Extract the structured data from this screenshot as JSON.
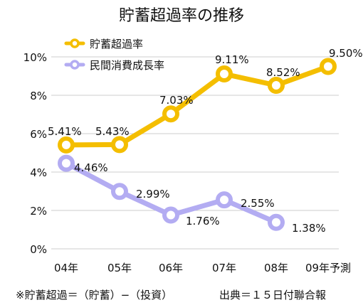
{
  "title": "貯蓄超過率の推移",
  "footnote": "※貯蓄超過＝（貯蓄）−（投資）",
  "source": "出典＝１５日付聯合報",
  "colors": {
    "savings": "#f4be00",
    "consumption": "#b3acf2",
    "grid": "#cccccc"
  },
  "chart_data": {
    "type": "line",
    "title": "貯蓄超過率の推移",
    "categories": [
      "04年",
      "05年",
      "06年",
      "07年",
      "08年",
      "09年予測"
    ],
    "ylim": [
      0,
      10
    ],
    "yticks": [
      "0%",
      "2%",
      "4%",
      "6%",
      "8%",
      "10%"
    ],
    "grid": true,
    "legend_position": "top-left",
    "series": [
      {
        "name": "貯蓄超過率",
        "values": [
          5.41,
          5.43,
          7.03,
          9.11,
          8.52,
          9.5
        ],
        "labels": [
          "5.41%",
          "5.43%",
          "7.03%",
          "9.11%",
          "8.52%",
          "9.50%"
        ]
      },
      {
        "name": "民間消費成長率",
        "values": [
          4.46,
          2.99,
          1.76,
          2.55,
          1.38,
          null
        ],
        "labels": [
          "4.46%",
          "2.99%",
          "1.76%",
          "2.55%",
          "1.38%",
          null
        ]
      }
    ]
  }
}
